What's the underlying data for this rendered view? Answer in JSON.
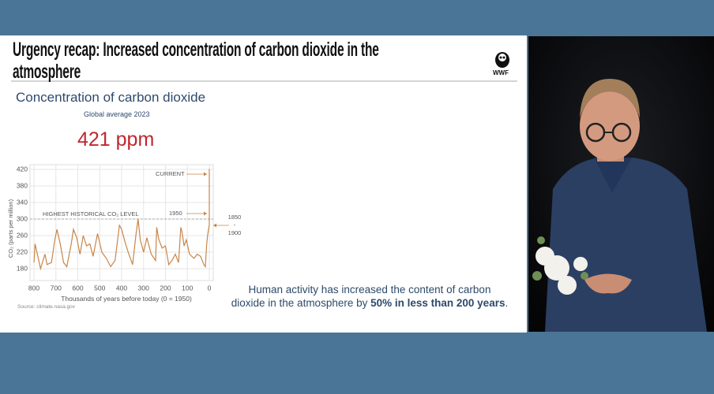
{
  "slide": {
    "title": "Urgency recap: Increased concentration of carbon dioxide in the atmosphere",
    "logo_text": "WWF",
    "subtitle": "Concentration of carbon dioxide",
    "global_label": "Global average 2023",
    "big_value": "421 ppm",
    "body_before": "Human activity has increased the content of carbon dioxide in the atmosphere by ",
    "body_bold": "50% in less than 200 years",
    "body_after": ".",
    "source": "Source: climate.nasa.gov"
  },
  "chart_data": {
    "type": "line",
    "x_label": "Thousands of years before today (0 = 1950)",
    "y_label": "CO₂ (parts per million)",
    "x": [
      800,
      795,
      780,
      770,
      750,
      740,
      720,
      705,
      695,
      680,
      665,
      650,
      630,
      620,
      605,
      590,
      575,
      560,
      545,
      530,
      510,
      490,
      470,
      450,
      430,
      410,
      400,
      385,
      370,
      350,
      335,
      325,
      315,
      300,
      285,
      265,
      245,
      240,
      230,
      215,
      200,
      185,
      170,
      155,
      140,
      130,
      125,
      115,
      105,
      90,
      70,
      55,
      40,
      25,
      18,
      12,
      8,
      2,
      0.17,
      0.07,
      0
    ],
    "values": [
      195,
      240,
      205,
      180,
      215,
      190,
      195,
      250,
      275,
      240,
      195,
      185,
      240,
      275,
      255,
      215,
      260,
      235,
      240,
      210,
      265,
      220,
      205,
      185,
      200,
      285,
      275,
      245,
      220,
      190,
      260,
      300,
      250,
      220,
      255,
      215,
      200,
      280,
      250,
      230,
      235,
      190,
      200,
      215,
      195,
      280,
      270,
      235,
      250,
      215,
      205,
      215,
      210,
      190,
      185,
      240,
      260,
      280,
      285,
      310,
      421
    ],
    "color": "#c8864a",
    "xlim": [
      800,
      0
    ],
    "xticks": [
      800,
      700,
      600,
      500,
      400,
      300,
      200,
      100,
      0
    ],
    "ylim": [
      160,
      420
    ],
    "yticks": [
      180,
      220,
      260,
      300,
      340,
      380,
      420
    ],
    "grid": true,
    "reference_line": {
      "value": 300,
      "label": "HIGHEST HISTORICAL CO₂ LEVEL"
    },
    "annotations": [
      "CURRENT",
      "1950"
    ],
    "range_label": [
      "1850",
      "-",
      "1900"
    ]
  }
}
